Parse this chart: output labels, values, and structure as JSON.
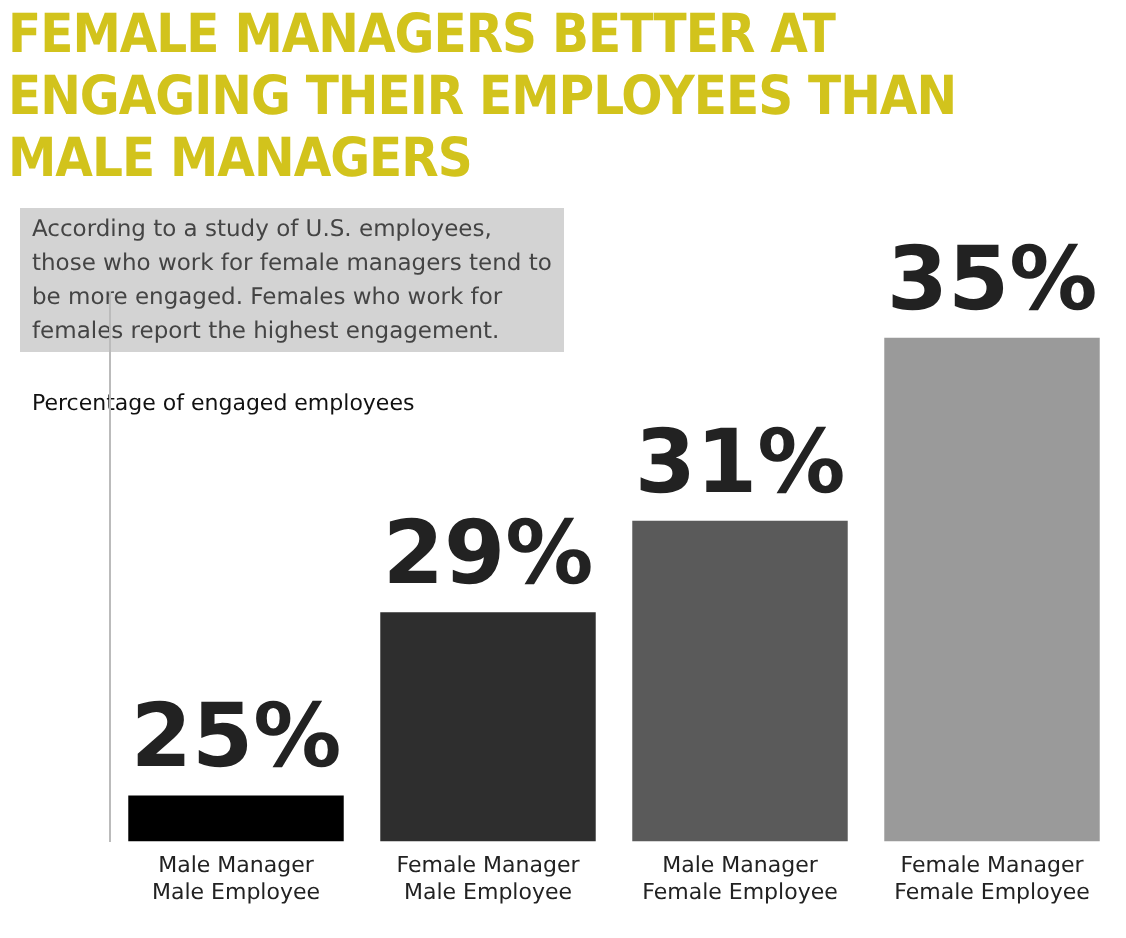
{
  "chart_data": {
    "type": "bar",
    "title": "FEMALE MANAGERS BETTER AT ENGAGING THEIR EMPLOYEES THAN MALE MANAGERS",
    "subtitle": "According to a study of U.S. employees, those who work for female managers tend to be more engaged. Females who work for females report the highest engagement.",
    "ylabel": "Percentage of engaged employees",
    "categories": [
      "Male Manager\nMale Employee",
      "Female Manager\nMale Employee",
      "Male Manager\nFemale Employee",
      "Female Manager\nFemale Employee"
    ],
    "values": [
      25,
      29,
      31,
      35
    ],
    "colors": [
      "#000000",
      "#2e2e2e",
      "#5a5a5a",
      "#9a9a9a"
    ],
    "value_labels": [
      "25%",
      "29%",
      "31%",
      "35%"
    ],
    "ylim": [
      24,
      36
    ],
    "tick_labels": "x",
    "grid": false,
    "legend": false
  }
}
